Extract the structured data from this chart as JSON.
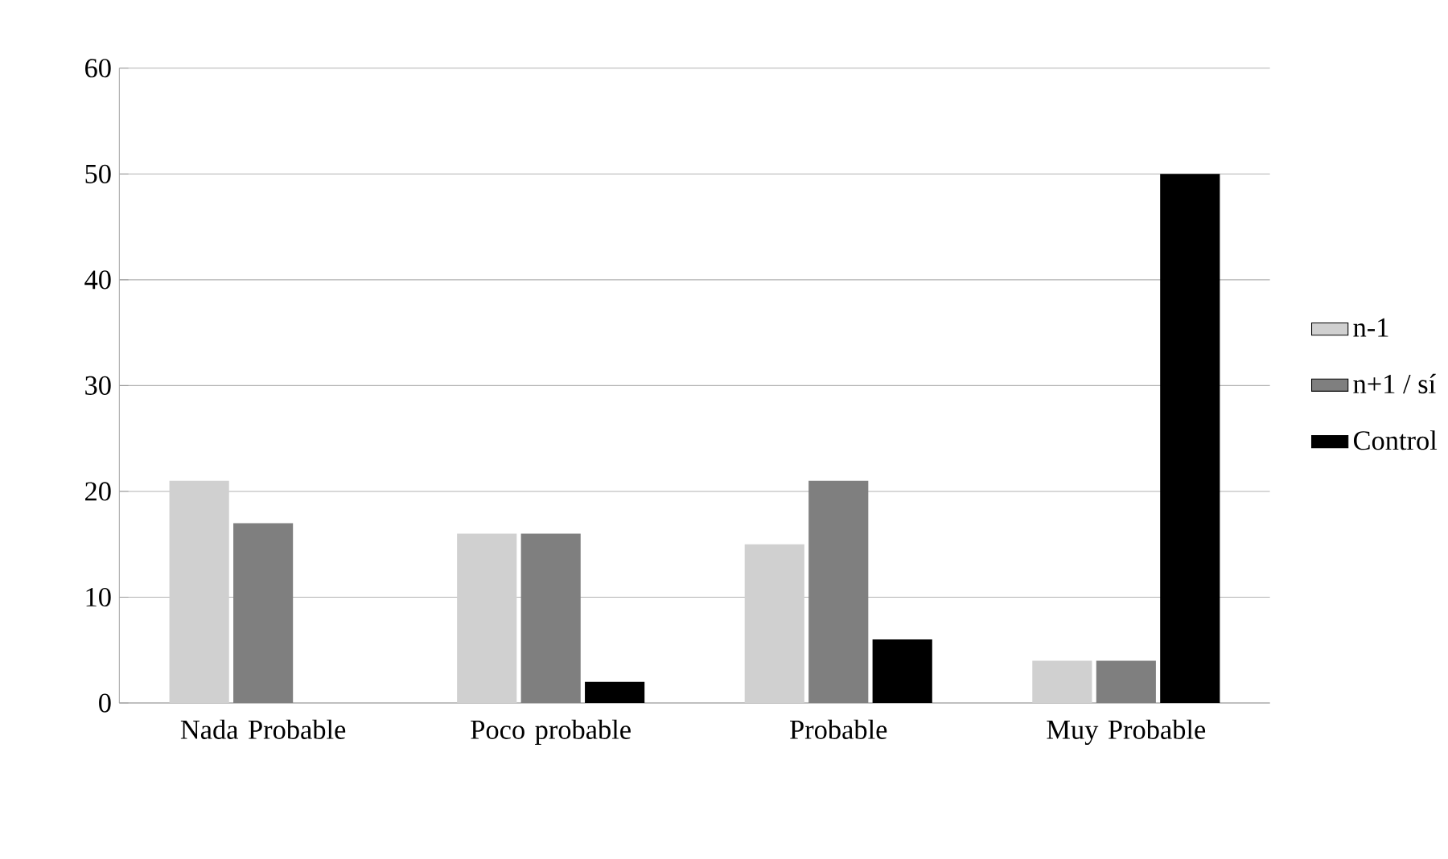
{
  "chart_data": {
    "type": "bar",
    "categories": [
      "Nada Probable",
      "Poco probable",
      "Probable",
      "Muy Probable"
    ],
    "series": [
      {
        "name": "n-1",
        "color": "#d0d0d0",
        "values": [
          21,
          16,
          15,
          4
        ]
      },
      {
        "name": "n+1 / sí",
        "color": "#7f7f7f",
        "values": [
          17,
          16,
          21,
          4
        ]
      },
      {
        "name": "Control",
        "color": "#000000",
        "values": [
          0,
          2,
          6,
          50
        ]
      }
    ],
    "ylim": [
      0,
      60
    ],
    "yticks": [
      0,
      10,
      20,
      30,
      40,
      50,
      60
    ],
    "grid": "y",
    "legend": "right"
  }
}
